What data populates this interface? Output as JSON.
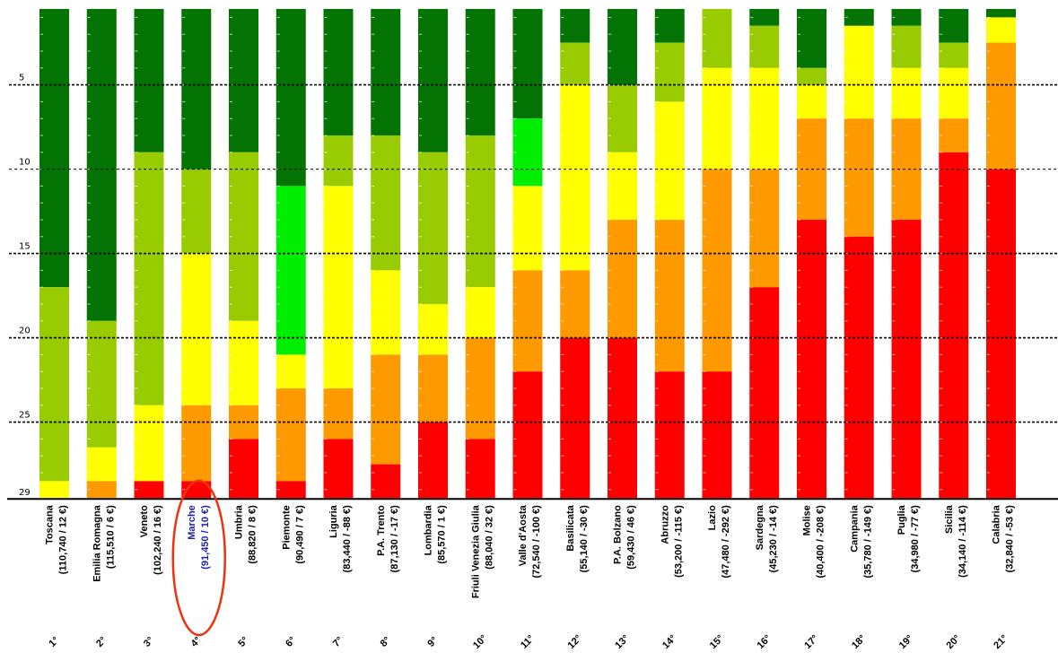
{
  "chart_data": {
    "type": "bar",
    "stacked": true,
    "y_ticks": [
      "5",
      "10",
      "15",
      "20",
      "25",
      "29"
    ],
    "ylim": [
      1,
      29
    ],
    "highlight": "Marche",
    "colors": {
      "dark_green": "#037303",
      "light_green": "#99cc00",
      "bright_green": "#00ee00",
      "yellow": "#ffff00",
      "orange": "#ff9900",
      "red": "#ff0000"
    },
    "categories": [
      {
        "name": "Toscana",
        "value": "(110,740 / 12 €)",
        "rank": "1°",
        "segments": [
          [
            "dark_green",
            17
          ],
          [
            "light_green",
            28.5
          ],
          [
            "yellow",
            29.5
          ]
        ]
      },
      {
        "name": "Emilia Romagna",
        "value": "(115,510 / 6 €)",
        "rank": "2°",
        "segments": [
          [
            "dark_green",
            19
          ],
          [
            "light_green",
            26.5
          ],
          [
            "yellow",
            28.5
          ],
          [
            "orange",
            29.5
          ]
        ]
      },
      {
        "name": "Veneto",
        "value": "(102,240 / 16 €)",
        "rank": "3°",
        "segments": [
          [
            "dark_green",
            9
          ],
          [
            "light_green",
            24
          ],
          [
            "yellow",
            28.5
          ],
          [
            "red",
            29.5
          ]
        ]
      },
      {
        "name": "Marche",
        "value": "(91,450 / 10 €)",
        "rank": "4°",
        "segments": [
          [
            "dark_green",
            10
          ],
          [
            "light_green",
            15
          ],
          [
            "yellow",
            24
          ],
          [
            "orange",
            28.5
          ],
          [
            "red",
            29.5
          ]
        ]
      },
      {
        "name": "Umbria",
        "value": "(88,820 / 8 €)",
        "rank": "5°",
        "segments": [
          [
            "dark_green",
            9
          ],
          [
            "light_green",
            19
          ],
          [
            "yellow",
            24
          ],
          [
            "orange",
            26
          ],
          [
            "red",
            29.5
          ]
        ]
      },
      {
        "name": "Piemonte",
        "value": "(90,490 / 7 €)",
        "rank": "6°",
        "segments": [
          [
            "dark_green",
            11
          ],
          [
            "bright_green",
            21
          ],
          [
            "yellow",
            23
          ],
          [
            "orange",
            28.5
          ],
          [
            "red",
            29.5
          ]
        ]
      },
      {
        "name": "Liguria",
        "value": "(83,440 / -88 €)",
        "rank": "7°",
        "segments": [
          [
            "dark_green",
            8
          ],
          [
            "light_green",
            11
          ],
          [
            "yellow",
            23
          ],
          [
            "orange",
            26
          ],
          [
            "red",
            29.5
          ]
        ]
      },
      {
        "name": "P.A. Trento",
        "value": "(87,130 / -17 €)",
        "rank": "8°",
        "segments": [
          [
            "dark_green",
            8
          ],
          [
            "light_green",
            16
          ],
          [
            "yellow",
            21
          ],
          [
            "orange",
            27.5
          ],
          [
            "red",
            29.5
          ]
        ]
      },
      {
        "name": "Lombardia",
        "value": "(85,570 / 1 €)",
        "rank": "9°",
        "segments": [
          [
            "dark_green",
            9
          ],
          [
            "light_green",
            18
          ],
          [
            "yellow",
            21
          ],
          [
            "orange",
            25
          ],
          [
            "red",
            29.5
          ]
        ]
      },
      {
        "name": "Friuli Venezia Giulia",
        "value": "(88,040 / 32 €)",
        "rank": "10°",
        "segments": [
          [
            "dark_green",
            8
          ],
          [
            "light_green",
            17
          ],
          [
            "yellow",
            20
          ],
          [
            "orange",
            26
          ],
          [
            "red",
            29.5
          ]
        ]
      },
      {
        "name": "Valle d'Aosta",
        "value": "(72,540 / -100 €)",
        "rank": "11°",
        "segments": [
          [
            "dark_green",
            7
          ],
          [
            "bright_green",
            11
          ],
          [
            "yellow",
            16
          ],
          [
            "orange",
            22
          ],
          [
            "red",
            29.5
          ]
        ]
      },
      {
        "name": "Basilicata",
        "value": "(55,140 / -30 €)",
        "rank": "12°",
        "segments": [
          [
            "dark_green",
            2.5
          ],
          [
            "light_green",
            5
          ],
          [
            "yellow",
            16
          ],
          [
            "orange",
            20
          ],
          [
            "red",
            29.5
          ]
        ]
      },
      {
        "name": "P.A. Bolzano",
        "value": "(59,430 / 46 €)",
        "rank": "13°",
        "segments": [
          [
            "dark_green",
            5
          ],
          [
            "light_green",
            9
          ],
          [
            "yellow",
            13
          ],
          [
            "orange",
            20
          ],
          [
            "red",
            29.5
          ]
        ]
      },
      {
        "name": "Abruzzo",
        "value": "(53,200 / -115 €)",
        "rank": "14°",
        "segments": [
          [
            "dark_green",
            2.5
          ],
          [
            "light_green",
            6
          ],
          [
            "yellow",
            13
          ],
          [
            "orange",
            22
          ],
          [
            "red",
            29.5
          ]
        ]
      },
      {
        "name": "Lazio",
        "value": "(47,480 / -292 €)",
        "rank": "15°",
        "segments": [
          [
            "light_green",
            4
          ],
          [
            "yellow",
            10
          ],
          [
            "orange",
            22
          ],
          [
            "red",
            29.5
          ]
        ]
      },
      {
        "name": "Sardegna",
        "value": "(45,230 / -14 €)",
        "rank": "16°",
        "segments": [
          [
            "dark_green",
            1.5
          ],
          [
            "light_green",
            4
          ],
          [
            "yellow",
            10
          ],
          [
            "orange",
            17
          ],
          [
            "red",
            29.5
          ]
        ]
      },
      {
        "name": "Molise",
        "value": "(40,400 / -208 €)",
        "rank": "17°",
        "segments": [
          [
            "dark_green",
            4
          ],
          [
            "light_green",
            5
          ],
          [
            "yellow",
            7
          ],
          [
            "orange",
            13
          ],
          [
            "red",
            29.5
          ]
        ]
      },
      {
        "name": "Campania",
        "value": "(35,780 / -149 €)",
        "rank": "18°",
        "segments": [
          [
            "dark_green",
            1.5
          ],
          [
            "yellow",
            7
          ],
          [
            "orange",
            14
          ],
          [
            "red",
            29.5
          ]
        ]
      },
      {
        "name": "Puglia",
        "value": "(34,980 / -77 €)",
        "rank": "19°",
        "segments": [
          [
            "dark_green",
            1.5
          ],
          [
            "light_green",
            4
          ],
          [
            "yellow",
            7
          ],
          [
            "orange",
            13
          ],
          [
            "red",
            29.5
          ]
        ]
      },
      {
        "name": "Sicilia",
        "value": "(34,140 / -114 €)",
        "rank": "20°",
        "segments": [
          [
            "dark_green",
            2.5
          ],
          [
            "light_green",
            4
          ],
          [
            "yellow",
            7
          ],
          [
            "orange",
            9
          ],
          [
            "red",
            29.5
          ]
        ]
      },
      {
        "name": "Calabria",
        "value": "(32,840 / -53 €)",
        "rank": "21°",
        "segments": [
          [
            "dark_green",
            1
          ],
          [
            "yellow",
            2.5
          ],
          [
            "orange",
            10
          ],
          [
            "red",
            29.5
          ]
        ]
      }
    ]
  }
}
